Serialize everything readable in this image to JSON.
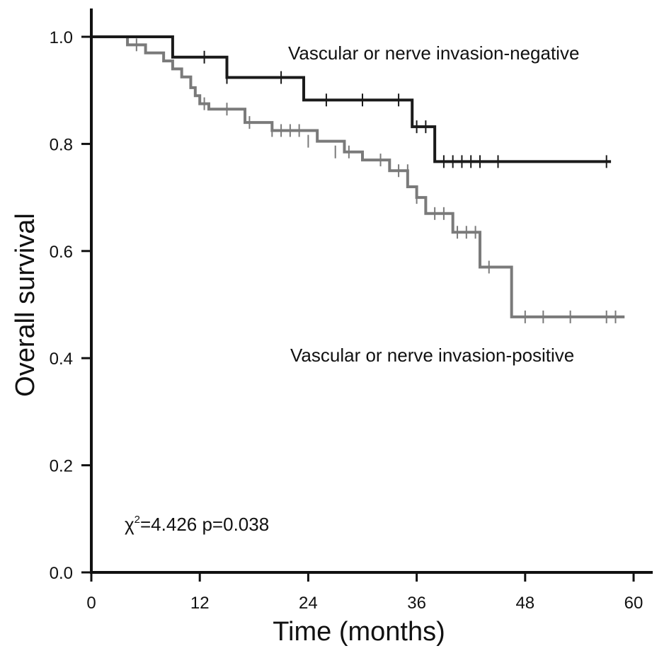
{
  "chart_data": {
    "type": "line",
    "subtype": "kaplan-meier",
    "title": "",
    "xlabel": "Time (months)",
    "ylabel": "Overall survival",
    "xlim": [
      0,
      60
    ],
    "ylim": [
      0,
      1.0
    ],
    "xticks": [
      0,
      12,
      24,
      36,
      48,
      60
    ],
    "yticks": [
      0.0,
      0.2,
      0.4,
      0.6,
      0.8,
      1.0
    ],
    "xtick_labels": [
      "0",
      "12",
      "24",
      "36",
      "48",
      "60"
    ],
    "ytick_labels": [
      "0.0",
      "0.2",
      "0.4",
      "0.6",
      "0.8",
      "1.0"
    ],
    "grid": false,
    "series": [
      {
        "name": "Vascular or nerve invasion-negative",
        "color": "#1a1a1a",
        "steps": [
          [
            0,
            1.0
          ],
          [
            9,
            0.962
          ],
          [
            15,
            0.924
          ],
          [
            23.5,
            0.882
          ],
          [
            35.5,
            0.832
          ],
          [
            38,
            0.767
          ],
          [
            57.5,
            0.767
          ]
        ],
        "censored": [
          [
            12.5,
            0.962
          ],
          [
            15,
            0.924
          ],
          [
            21,
            0.924
          ],
          [
            26,
            0.882
          ],
          [
            30,
            0.882
          ],
          [
            34,
            0.882
          ],
          [
            36,
            0.832
          ],
          [
            37,
            0.832
          ],
          [
            39,
            0.767
          ],
          [
            40,
            0.767
          ],
          [
            41,
            0.767
          ],
          [
            42,
            0.767
          ],
          [
            43,
            0.767
          ],
          [
            45,
            0.767
          ],
          [
            57,
            0.767
          ]
        ]
      },
      {
        "name": "Vascular or nerve invasion-positive",
        "color": "#7a7a7a",
        "steps": [
          [
            0,
            1.0
          ],
          [
            4,
            0.985
          ],
          [
            6,
            0.97
          ],
          [
            8,
            0.955
          ],
          [
            9,
            0.94
          ],
          [
            10,
            0.925
          ],
          [
            11,
            0.905
          ],
          [
            11.5,
            0.89
          ],
          [
            12,
            0.875
          ],
          [
            13,
            0.865
          ],
          [
            17,
            0.84
          ],
          [
            20,
            0.825
          ],
          [
            25,
            0.805
          ],
          [
            28,
            0.785
          ],
          [
            30,
            0.77
          ],
          [
            33,
            0.75
          ],
          [
            35,
            0.72
          ],
          [
            36,
            0.7
          ],
          [
            37,
            0.67
          ],
          [
            40,
            0.635
          ],
          [
            43,
            0.57
          ],
          [
            46.5,
            0.477
          ],
          [
            59,
            0.477
          ]
        ],
        "censored": [
          [
            5,
            0.985
          ],
          [
            12.5,
            0.875
          ],
          [
            15,
            0.865
          ],
          [
            17.5,
            0.84
          ],
          [
            20,
            0.825
          ],
          [
            21,
            0.825
          ],
          [
            22,
            0.825
          ],
          [
            23,
            0.825
          ],
          [
            24,
            0.805
          ],
          [
            27,
            0.785
          ],
          [
            28.5,
            0.785
          ],
          [
            32,
            0.77
          ],
          [
            34,
            0.75
          ],
          [
            35,
            0.75
          ],
          [
            36,
            0.7
          ],
          [
            38,
            0.67
          ],
          [
            39,
            0.67
          ],
          [
            40.5,
            0.635
          ],
          [
            41.5,
            0.635
          ],
          [
            42.5,
            0.635
          ],
          [
            44,
            0.57
          ],
          [
            48,
            0.477
          ],
          [
            50,
            0.477
          ],
          [
            53,
            0.477
          ],
          [
            57,
            0.477
          ],
          [
            58,
            0.477
          ]
        ]
      }
    ],
    "annotations": {
      "negative_label": "Vascular or nerve invasion-negative",
      "positive_label": "Vascular or nerve invasion-positive",
      "stat_chi": "χ",
      "stat_chi_exp": "2",
      "stat_rest": "=4.426  p=0.038"
    }
  }
}
